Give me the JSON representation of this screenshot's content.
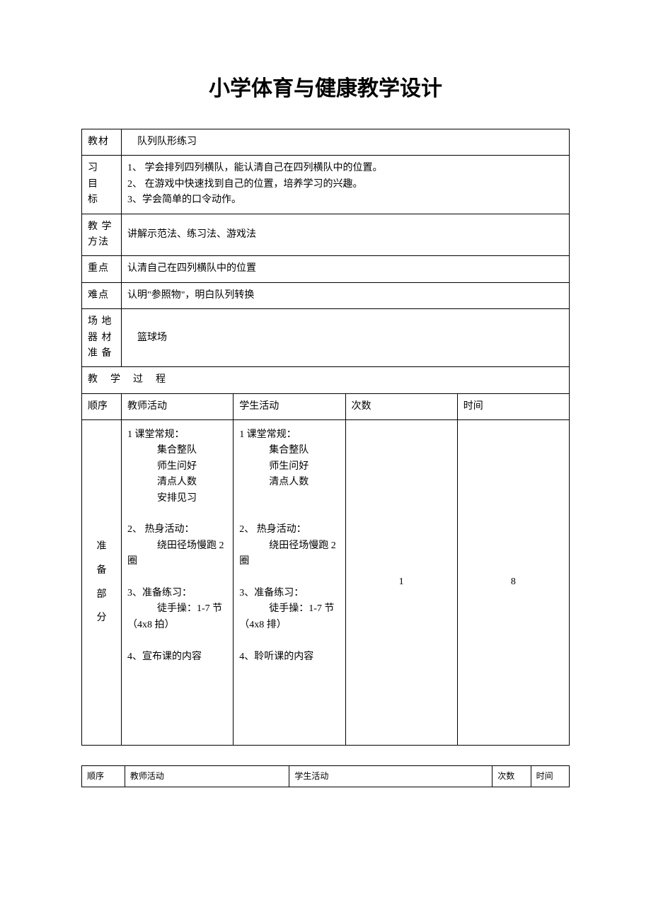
{
  "title": "小学体育与健康教学设计",
  "rows": {
    "material": {
      "label": "教材",
      "value": "　队列队形练习"
    },
    "goals": {
      "label_lines": [
        "习",
        "目",
        "标"
      ],
      "items": [
        "1、 学会排列四列横队，能认清自己在四列横队中的位置。",
        "2、 在游戏中快速找到自己的位置，培养学习的兴趣。",
        "3、学会简单的口令动作。"
      ]
    },
    "method": {
      "label": "教 学方法",
      "value": "讲解示范法、练习法、游戏法"
    },
    "key": {
      "label": "重点",
      "value": "认清自己在四列横队中的位置"
    },
    "difficulty": {
      "label": "难点",
      "value": "认明\"参照物\"，明白队列转换"
    },
    "venue": {
      "label_lines": [
        "场 地",
        "器 材",
        "准 备"
      ],
      "value": "　篮球场"
    },
    "process_header": "教学过程",
    "columns": {
      "order": "顺序",
      "teacher": "教师活动",
      "student": "学生活动",
      "count": "次数",
      "time": "时间"
    },
    "prep": {
      "label_lines": [
        "准",
        "备",
        "部",
        "分"
      ],
      "teacher_lines": [
        "1 课堂常规：",
        "　　　集合整队",
        "　　　师生问好",
        "　　　清点人数",
        "　　　安排见习",
        "",
        "2、 热身活动：",
        "　　　绕田径场慢跑 2 圈",
        "",
        "3、准备练习：",
        "　　　徒手操：1-7 节（4x8 拍）",
        "",
        "4、宣布课的内容"
      ],
      "student_lines": [
        "1 课堂常规：",
        "　　　集合整队",
        "　　　师生问好",
        "　　　清点人数",
        "",
        "",
        "2、 热身活动：",
        "　　　绕田径场慢跑 2 圈",
        "",
        "3、准备练习：",
        "　　　徒手操：1-7 节（4x8 排）",
        "",
        "4、聆听课的内容"
      ],
      "count": "1",
      "time": "8"
    }
  },
  "table2": {
    "order": "顺序",
    "teacher": "教师活动",
    "student": "学生活动",
    "count": "次数",
    "time": "时间"
  },
  "style": {
    "page_bg": "#ffffff",
    "text_color": "#000000",
    "border_color": "#000000",
    "title_fontsize": 30,
    "body_fontsize": 14,
    "table2_fontsize": 12
  }
}
